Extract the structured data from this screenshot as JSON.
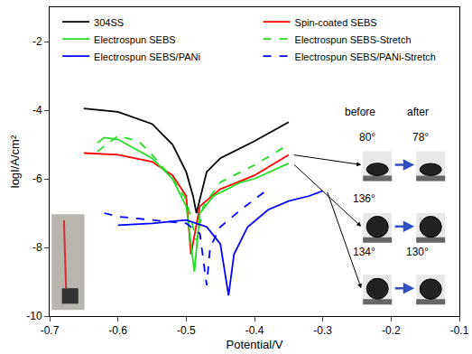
{
  "chart_data": {
    "type": "line",
    "x_label": "Potential/V",
    "y_label": "logI/A/cm²",
    "xlim": [
      -0.7,
      -0.1
    ],
    "xticks": [
      -0.7,
      -0.6,
      -0.5,
      -0.4,
      -0.3,
      -0.2,
      -0.1
    ],
    "ylim": [
      -10,
      -1
    ],
    "yticks": [
      -10,
      -8,
      -6,
      -4,
      -2
    ],
    "legend": "top",
    "series": [
      {
        "name": "304SS",
        "color": "#000000",
        "line_style": "solid",
        "x": [
          -0.65,
          -0.6,
          -0.55,
          -0.52,
          -0.5,
          -0.49,
          -0.485,
          -0.47,
          -0.45,
          -0.4,
          -0.35
        ],
        "values": [
          -3.95,
          -4.05,
          -4.4,
          -5.0,
          -5.8,
          -6.5,
          -7.0,
          -5.8,
          -5.4,
          -4.9,
          -4.35
        ]
      },
      {
        "name": "Spin-coated SEBS",
        "color": "#ff0000",
        "line_style": "solid",
        "x": [
          -0.65,
          -0.6,
          -0.55,
          -0.52,
          -0.5,
          -0.493,
          -0.48,
          -0.45,
          -0.4,
          -0.35
        ],
        "values": [
          -5.25,
          -5.3,
          -5.5,
          -5.9,
          -6.5,
          -8.2,
          -6.8,
          -6.3,
          -5.9,
          -5.3
        ]
      },
      {
        "name": "Electrospun SEBS",
        "color": "#22dd22",
        "line_style": "solid",
        "x": [
          -0.63,
          -0.62,
          -0.6,
          -0.55,
          -0.52,
          -0.5,
          -0.488,
          -0.48,
          -0.46,
          -0.42,
          -0.4,
          -0.35
        ],
        "values": [
          -4.95,
          -4.8,
          -4.85,
          -5.4,
          -6.0,
          -6.8,
          -8.7,
          -7.0,
          -6.5,
          -6.1,
          -6.0,
          -5.55
        ]
      },
      {
        "name": "Electrospun SEBS-Stretch",
        "color": "#22dd22",
        "line_style": "dash",
        "x": [
          -0.63,
          -0.6,
          -0.57,
          -0.55,
          -0.52,
          -0.5,
          -0.485,
          -0.475,
          -0.45,
          -0.4,
          -0.35
        ],
        "values": [
          -5.2,
          -4.75,
          -4.9,
          -5.3,
          -6.0,
          -6.6,
          -7.8,
          -6.8,
          -6.1,
          -5.6,
          -5.0
        ]
      },
      {
        "name": "Electrospun SEBS/PANi",
        "color": "#0000ff",
        "line_style": "solid",
        "x": [
          -0.6,
          -0.55,
          -0.5,
          -0.47,
          -0.45,
          -0.438,
          -0.43,
          -0.41,
          -0.38,
          -0.35,
          -0.32,
          -0.3
        ],
        "values": [
          -7.35,
          -7.3,
          -7.2,
          -7.4,
          -7.9,
          -9.4,
          -8.2,
          -7.4,
          -6.9,
          -6.65,
          -6.5,
          -6.35
        ]
      },
      {
        "name": "Electrospun SEBS/PANi-Stretch",
        "color": "#0000ff",
        "line_style": "dash",
        "x": [
          -0.62,
          -0.6,
          -0.55,
          -0.5,
          -0.48,
          -0.47,
          -0.465,
          -0.45,
          -0.42,
          -0.4,
          -0.38
        ],
        "values": [
          -7.0,
          -7.1,
          -7.2,
          -7.3,
          -7.6,
          -9.1,
          -8.0,
          -7.4,
          -6.9,
          -6.6,
          -6.3
        ]
      }
    ],
    "contact_angle": {
      "headers": [
        "before",
        "after"
      ],
      "rows": [
        [
          {
            "value": 80,
            "label": "80°"
          },
          {
            "value": 78,
            "label": "78°"
          }
        ],
        [
          {
            "value": 136,
            "label": "136°"
          },
          null
        ],
        [
          {
            "value": 134,
            "label": "134°"
          },
          {
            "value": 130,
            "label": "130°"
          }
        ]
      ]
    }
  }
}
